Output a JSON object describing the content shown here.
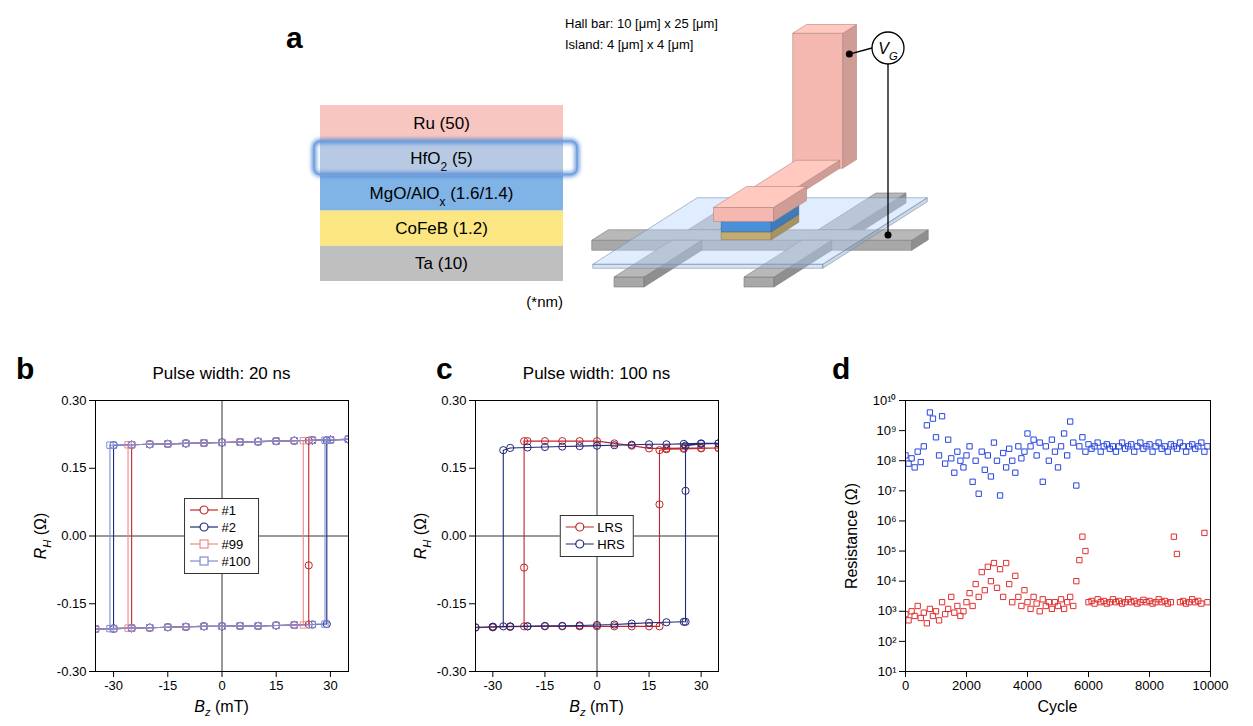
{
  "diagram": {
    "panel": "a",
    "annotations": [
      "Hall bar: 10 [μm] x 25 [μm]",
      "Island: 4 [μm] x 4 [μm]"
    ],
    "layers": [
      {
        "text": "Ru",
        "after": " (50)",
        "color": "#f8c6c0"
      },
      {
        "text": "HfO",
        "sub": "2",
        "after": " (5)",
        "color": "#b8cae3",
        "highlighted": true
      },
      {
        "text": "MgO/AlO",
        "sub": "x",
        "after": " (1.6/1.4)",
        "color": "#80b3e6"
      },
      {
        "text": "CoFeB",
        "after": " (1.2)",
        "color": "#fbe682"
      },
      {
        "text": "Ta",
        "after": " (10)",
        "color": "#bfbfbf"
      }
    ],
    "unit_note": "(*nm)",
    "gate_label": {
      "text": "V",
      "sub": "G"
    }
  },
  "chart_data": [
    {
      "panel": "b",
      "type": "line",
      "title": "Pulse width: 20 ns",
      "x_label": {
        "text": "B",
        "sub": "z",
        "after": " (mT)"
      },
      "y_label": {
        "text": "R",
        "sub": "H",
        "after": " (Ω)"
      },
      "xlim": [
        -35,
        35
      ],
      "xticks": [
        -30,
        -15,
        0,
        15,
        30
      ],
      "ylim": [
        -0.3,
        0.3
      ],
      "yticks": [
        {
          "value": -0.3,
          "label": "-0.30"
        },
        -0.15,
        {
          "value": 0,
          "label": "0.00"
        },
        0.15,
        {
          "value": 0.3,
          "label": "0.30"
        }
      ],
      "grid": false,
      "legend": "center",
      "series": [
        {
          "name": "#1",
          "color": "#c0272d",
          "marker": "circle",
          "x": [
            35,
            30,
            25,
            20,
            15,
            10,
            5,
            0,
            -5,
            -10,
            -15,
            -20,
            -25,
            -25,
            -30,
            -35,
            -30,
            -25,
            -20,
            -15,
            -10,
            -5,
            0,
            5,
            10,
            15,
            20,
            24,
            24,
            24,
            25,
            30,
            35
          ],
          "values": [
            0.214,
            0.213,
            0.212,
            0.211,
            0.21,
            0.209,
            0.208,
            0.207,
            0.206,
            0.205,
            0.204,
            0.203,
            0.202,
            -0.204,
            -0.205,
            -0.206,
            -0.205,
            -0.204,
            -0.203,
            -0.202,
            -0.201,
            -0.2,
            -0.2,
            -0.199,
            -0.199,
            -0.198,
            -0.197,
            -0.196,
            -0.065,
            0.211,
            0.212,
            0.213,
            0.214
          ]
        },
        {
          "name": "#2",
          "color": "#1f2a7a",
          "marker": "circle",
          "x": [
            35,
            30,
            25,
            20,
            15,
            10,
            5,
            0,
            -5,
            -10,
            -15,
            -20,
            -25,
            -30,
            -30,
            -35,
            -30,
            -25,
            -20,
            -15,
            -10,
            -5,
            0,
            5,
            10,
            15,
            20,
            25,
            29,
            29,
            35
          ],
          "values": [
            0.214,
            0.213,
            0.212,
            0.211,
            0.21,
            0.209,
            0.208,
            0.207,
            0.206,
            0.205,
            0.204,
            0.203,
            0.202,
            0.201,
            -0.205,
            -0.206,
            -0.205,
            -0.204,
            -0.203,
            -0.202,
            -0.201,
            -0.2,
            -0.2,
            -0.199,
            -0.199,
            -0.198,
            -0.197,
            -0.196,
            -0.195,
            0.212,
            0.214
          ]
        },
        {
          "name": "#99",
          "color": "#ef8a8a",
          "marker": "square",
          "x": [
            35,
            30,
            25,
            20,
            15,
            10,
            5,
            0,
            -5,
            -10,
            -15,
            -20,
            -25,
            -26,
            -26,
            -30,
            -35,
            -30,
            -25,
            -20,
            -15,
            -10,
            -5,
            0,
            5,
            10,
            15,
            20,
            22.5,
            22.5,
            25,
            30,
            35
          ],
          "values": [
            0.214,
            0.213,
            0.212,
            0.211,
            0.21,
            0.209,
            0.208,
            0.207,
            0.206,
            0.205,
            0.204,
            0.203,
            0.202,
            0.202,
            -0.204,
            -0.205,
            -0.206,
            -0.205,
            -0.204,
            -0.203,
            -0.202,
            -0.201,
            -0.2,
            -0.2,
            -0.199,
            -0.199,
            -0.198,
            -0.197,
            -0.197,
            0.211,
            0.212,
            0.213,
            0.214
          ]
        },
        {
          "name": "#100",
          "color": "#7b8fd8",
          "marker": "square",
          "x": [
            35,
            30,
            25,
            20,
            15,
            10,
            5,
            0,
            -5,
            -10,
            -15,
            -20,
            -25,
            -30,
            -31,
            -31,
            -35,
            -30,
            -25,
            -20,
            -15,
            -10,
            -5,
            0,
            5,
            10,
            15,
            20,
            25,
            28.5,
            28.5,
            30,
            35
          ],
          "values": [
            0.214,
            0.213,
            0.212,
            0.211,
            0.21,
            0.209,
            0.208,
            0.207,
            0.206,
            0.205,
            0.204,
            0.203,
            0.202,
            0.201,
            0.201,
            -0.205,
            -0.206,
            -0.205,
            -0.204,
            -0.203,
            -0.202,
            -0.201,
            -0.2,
            -0.2,
            -0.199,
            -0.199,
            -0.198,
            -0.197,
            -0.196,
            -0.195,
            0.212,
            0.213,
            0.214
          ]
        }
      ]
    },
    {
      "panel": "c",
      "type": "line",
      "title": "Pulse width: 100 ns",
      "x_label": {
        "text": "B",
        "sub": "z",
        "after": " (mT)"
      },
      "y_label": {
        "text": "R",
        "sub": "H",
        "after": " (Ω)"
      },
      "xlim": [
        -35,
        35
      ],
      "xticks": [
        -30,
        -15,
        0,
        15,
        30
      ],
      "ylim": [
        -0.3,
        0.3
      ],
      "yticks": [
        {
          "value": -0.3,
          "label": "-0.30"
        },
        -0.15,
        {
          "value": 0,
          "label": "0.00"
        },
        0.15,
        {
          "value": 0.3,
          "label": "0.30"
        }
      ],
      "grid": false,
      "legend": "center",
      "series": [
        {
          "name": "LRS",
          "color": "#c0272d",
          "marker": "circle",
          "x": [
            35,
            30,
            25,
            20,
            15,
            10,
            5,
            0,
            -5,
            -10,
            -15,
            -20,
            -21,
            -21,
            -21,
            -25,
            -30,
            -35,
            -30,
            -25,
            -20,
            -15,
            -10,
            -5,
            0,
            5,
            10,
            15,
            18,
            18,
            18,
            20,
            25,
            30,
            35
          ],
          "values": [
            0.195,
            0.195,
            0.195,
            0.194,
            0.194,
            0.2,
            0.205,
            0.21,
            0.21,
            0.21,
            0.21,
            0.21,
            0.21,
            -0.07,
            -0.2,
            -0.201,
            -0.202,
            -0.203,
            -0.202,
            -0.201,
            -0.2,
            -0.2,
            -0.2,
            -0.2,
            -0.2,
            -0.2,
            -0.2,
            -0.2,
            -0.2,
            0.07,
            0.19,
            0.192,
            0.193,
            0.194,
            0.195
          ]
        },
        {
          "name": "HRS",
          "color": "#1f2a7a",
          "marker": "circle",
          "x": [
            35,
            30,
            25,
            20,
            15,
            10,
            5,
            0,
            -5,
            -10,
            -15,
            -20,
            -25,
            -27,
            -27,
            -30,
            -35,
            -30,
            -25,
            -20,
            -15,
            -10,
            -5,
            0,
            5,
            10,
            15,
            20,
            25,
            25.5,
            25.5,
            25.5,
            30,
            35
          ],
          "values": [
            0.205,
            0.205,
            0.204,
            0.203,
            0.203,
            0.202,
            0.201,
            0.2,
            0.199,
            0.198,
            0.197,
            0.196,
            0.195,
            0.19,
            -0.2,
            -0.201,
            -0.202,
            -0.201,
            -0.2,
            -0.2,
            -0.199,
            -0.199,
            -0.198,
            -0.197,
            -0.196,
            -0.194,
            -0.192,
            -0.191,
            -0.19,
            -0.19,
            0.1,
            0.2,
            0.204,
            0.205
          ]
        }
      ]
    },
    {
      "panel": "d",
      "type": "scatter",
      "x_label": "Cycle",
      "y_label": "Resistance (Ω)",
      "log": "y",
      "xlim": [
        0,
        10000
      ],
      "xticks": [
        0,
        2000,
        4000,
        6000,
        8000,
        10000
      ],
      "ylim": [
        10,
        10000000000
      ],
      "yticks": [
        {
          "value": 10,
          "label": "10¹"
        },
        {
          "value": 100,
          "label": "10²"
        },
        {
          "value": 1000,
          "label": "10³"
        },
        {
          "value": 10000,
          "label": "10⁴"
        },
        {
          "value": 100000,
          "label": "10⁵"
        },
        {
          "value": 1000000,
          "label": "10⁶"
        },
        {
          "value": 10000000,
          "label": "10⁷"
        },
        {
          "value": 100000000,
          "label": "10⁸"
        },
        {
          "value": 1000000000,
          "label": "10⁹"
        },
        {
          "value": 10000000000,
          "label": "10¹⁰"
        }
      ],
      "grid": false,
      "x": [
        0,
        100,
        200,
        300,
        400,
        500,
        600,
        700,
        800,
        900,
        1000,
        1100,
        1200,
        1300,
        1400,
        1500,
        1600,
        1700,
        1800,
        1900,
        2000,
        2100,
        2200,
        2300,
        2400,
        2500,
        2600,
        2700,
        2800,
        2900,
        3000,
        3100,
        3200,
        3300,
        3400,
        3500,
        3600,
        3700,
        3800,
        3900,
        4000,
        4100,
        4200,
        4300,
        4400,
        4500,
        4600,
        4700,
        4800,
        4900,
        5000,
        5100,
        5200,
        5300,
        5400,
        5500,
        5600,
        5700,
        5800,
        5900,
        6000,
        6100,
        6200,
        6300,
        6400,
        6500,
        6600,
        6700,
        6800,
        6900,
        7000,
        7100,
        7200,
        7300,
        7400,
        7500,
        7600,
        7700,
        7800,
        7900,
        8000,
        8100,
        8200,
        8300,
        8400,
        8500,
        8600,
        8700,
        8800,
        8900,
        9000,
        9100,
        9200,
        9300,
        9400,
        9500,
        9600,
        9700,
        9800,
        9900
      ],
      "series": [
        {
          "color": "#2846e0",
          "marker": "square",
          "values": [
            150000000.0,
            80000000.0,
            120000000.0,
            60000000.0,
            200000000.0,
            90000000.0,
            300000000.0,
            1500000000.0,
            4000000000.0,
            2500000000.0,
            600000000.0,
            150000000.0,
            3000000000.0,
            80000000.0,
            500000000.0,
            120000000.0,
            40000000.0,
            200000000.0,
            100000000.0,
            60000000.0,
            150000000.0,
            300000000.0,
            20000000.0,
            100000000.0,
            8000000.0,
            200000000.0,
            50000000.0,
            150000000.0,
            30000000.0,
            400000000.0,
            100000000.0,
            7000000.0,
            180000000.0,
            60000000.0,
            250000000.0,
            100000000.0,
            40000000.0,
            300000000.0,
            120000000.0,
            200000000.0,
            800000000.0,
            300000000.0,
            500000000.0,
            150000000.0,
            400000000.0,
            20000000.0,
            300000000.0,
            100000000.0,
            500000000.0,
            200000000.0,
            60000000.0,
            300000000.0,
            800000000.0,
            150000000.0,
            2000000000.0,
            400000000.0,
            15000000.0,
            300000000.0,
            600000000.0,
            200000000.0,
            350000000.0,
            250000000.0,
            300000000.0,
            400000000.0,
            200000000.0,
            300000000.0,
            350000000.0,
            250000000.0,
            300000000.0,
            200000000.0,
            300000000.0,
            400000000.0,
            250000000.0,
            300000000.0,
            350000000.0,
            200000000.0,
            300000000.0,
            400000000.0,
            250000000.0,
            300000000.0,
            350000000.0,
            200000000.0,
            300000000.0,
            400000000.0,
            250000000.0,
            300000000.0,
            200000000.0,
            350000000.0,
            300000000.0,
            250000000.0,
            400000000.0,
            300000000.0,
            200000000.0,
            300000000.0,
            350000000.0,
            250000000.0,
            300000000.0,
            400000000.0,
            200000000.0,
            300000000.0
          ]
        },
        {
          "color": "#e03030",
          "marker": "square",
          "values": [
            800,
            500,
            1000,
            700,
            1500,
            600,
            900,
            400,
            1200,
            700,
            1000,
            500,
            2000,
            800,
            1200,
            3000,
            900,
            1500,
            700,
            1000,
            2000,
            4000,
            1500,
            8000,
            3000,
            20000,
            5000,
            30000,
            10000,
            40000,
            6000,
            25000,
            3000,
            40000,
            8000,
            2000,
            15000,
            3000,
            1500,
            5000,
            2000,
            1200,
            3000,
            1800,
            1000,
            2500,
            1500,
            2000,
            1200,
            2000,
            1500,
            2500,
            1200,
            2000,
            3000,
            1500,
            10000,
            50000,
            300000,
            100000,
            2000,
            2200,
            1800,
            2500,
            2000,
            2200,
            1800,
            2000,
            2500,
            2000,
            2200,
            1800,
            2000,
            2500,
            2000,
            2200,
            1800,
            2000,
            2400,
            2000,
            2200,
            1800,
            2000,
            2500,
            2000,
            2200,
            1800,
            2000,
            300000,
            80000,
            2000,
            2200,
            1800,
            2000,
            2500,
            2000,
            2200,
            1800,
            400000,
            2000
          ]
        }
      ]
    }
  ]
}
